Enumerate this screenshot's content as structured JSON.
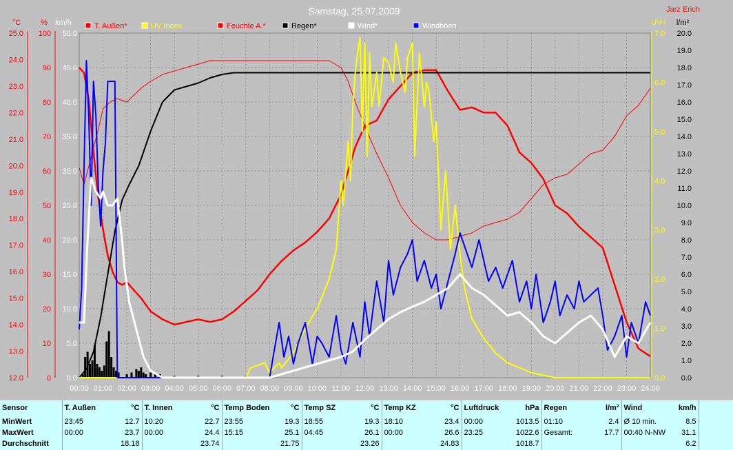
{
  "chart_data": {
    "type": "line",
    "title": "Samstag, 25.07.2009",
    "author": "Jarz Erich",
    "x_ticks": [
      "00:00",
      "01:00",
      "02:00",
      "03:00",
      "04:00",
      "05:00",
      "06:00",
      "07:00",
      "08:00",
      "09:00",
      "10:00",
      "11:00",
      "12:00",
      "13:00",
      "14:00",
      "15:00",
      "16:00",
      "17:00",
      "18:00",
      "19:00",
      "20:00",
      "21:00",
      "22:00",
      "23:00",
      "24:00"
    ],
    "axes": {
      "temp": {
        "unit": "°C",
        "color": "#ff0000",
        "range": [
          12,
          25
        ],
        "ticks": [
          "12.0",
          "13.0",
          "14.0",
          "15.0",
          "16.0",
          "17.0",
          "18.0",
          "19.0",
          "20.0",
          "21.0",
          "22.0",
          "23.0",
          "24.0",
          "25.0"
        ]
      },
      "humidity": {
        "unit": "%",
        "color": "#ff0000",
        "range": [
          0,
          100
        ],
        "ticks": [
          "0",
          "10",
          "20",
          "30",
          "40",
          "50",
          "60",
          "70",
          "80",
          "90",
          "100"
        ]
      },
      "wind": {
        "unit": "km/h",
        "color": "#ffffff",
        "range": [
          0,
          50
        ],
        "ticks": [
          "0.0",
          "5.0",
          "10.0",
          "15.0",
          "20.0",
          "25.0",
          "30.0",
          "35.0",
          "40.0",
          "45.0",
          "50.0"
        ]
      },
      "uv": {
        "unit": "UV-I",
        "color": "#ffff00",
        "range": [
          0,
          7
        ],
        "ticks": [
          "0.0",
          "1.0",
          "2.0",
          "3.0",
          "4.0",
          "5.0",
          "6.0",
          "7.0"
        ]
      },
      "rain": {
        "unit": "l/m²",
        "color": "#000000",
        "range": [
          0,
          20
        ],
        "ticks": [
          "0.0",
          "1.0",
          "2.0",
          "3.0",
          "4.0",
          "5.0",
          "6.0",
          "7.0",
          "8.0",
          "9.0",
          "10.0",
          "11.0",
          "12.0",
          "13.0",
          "14.0",
          "15.0",
          "16.0",
          "17.0",
          "18.0",
          "19.0",
          "20.0"
        ]
      }
    },
    "legend": [
      {
        "label": "T. Außen*",
        "color": "#ff0000",
        "text_color": "#ff0000"
      },
      {
        "label": "UV Index",
        "color": "#ffff00",
        "text_color": "#ffff00"
      },
      {
        "label": "Feuchte A.*",
        "color": "#ff0000",
        "text_color": "#ff0000"
      },
      {
        "label": "Regen*",
        "color": "#000000",
        "text_color": "#000000"
      },
      {
        "label": "Wind*",
        "color": "#ffffff",
        "text_color": "#ffffff"
      },
      {
        "label": "Windböen",
        "color": "#0000ff",
        "text_color": "#ffffff"
      }
    ],
    "grid": true,
    "series": [
      {
        "name": "T. Außen*",
        "color": "#ff0000",
        "axis": "temp",
        "width": 2.5,
        "x": [
          0,
          0.2,
          0.4,
          0.6,
          0.8,
          1,
          1.2,
          1.4,
          1.6,
          1.8,
          2,
          2.3,
          2.6,
          3,
          3.5,
          4,
          4.5,
          5,
          5.5,
          6,
          6.5,
          7,
          7.5,
          8,
          8.5,
          9,
          9.5,
          10,
          10.5,
          11,
          11.3,
          11.6,
          12,
          12.5,
          13,
          13.5,
          14,
          14.5,
          15,
          15.5,
          16,
          16.5,
          17,
          17.5,
          18,
          18.5,
          19,
          19.5,
          20,
          20.5,
          21,
          21.5,
          22,
          22.5,
          23,
          23.5,
          24
        ],
        "y": [
          23.7,
          23.5,
          22.5,
          20.5,
          18.8,
          17.6,
          16.6,
          16.0,
          15.6,
          15.5,
          15.6,
          15.3,
          15.0,
          14.5,
          14.2,
          14.0,
          14.1,
          14.2,
          14.1,
          14.2,
          14.5,
          14.9,
          15.3,
          15.9,
          16.4,
          16.8,
          17.1,
          17.5,
          18.0,
          18.9,
          19.8,
          20.7,
          21.5,
          21.7,
          22.5,
          23.0,
          23.5,
          23.6,
          23.6,
          22.8,
          22.1,
          22.2,
          22.0,
          22.0,
          21.5,
          20.5,
          20.1,
          19.5,
          18.5,
          18.2,
          17.7,
          17.3,
          16.9,
          15.5,
          14.1,
          13.1,
          12.8
        ]
      },
      {
        "name": "Feuchte A.*",
        "color": "#ff0000",
        "axis": "humidity",
        "width": 1,
        "x": [
          0,
          0.2,
          0.5,
          0.8,
          1,
          1.3,
          1.6,
          2,
          2.3,
          2.6,
          3,
          3.5,
          4,
          4.5,
          5,
          5.5,
          6,
          6.5,
          7,
          7.5,
          8,
          8.5,
          9,
          9.5,
          10,
          10.5,
          11,
          11.3,
          11.6,
          12,
          12.5,
          13,
          13.5,
          14,
          14.5,
          15,
          15.5,
          16,
          16.5,
          17,
          17.5,
          18,
          18.5,
          19,
          19.5,
          20,
          20.5,
          21,
          21.5,
          22,
          22.5,
          23,
          23.5,
          24
        ],
        "y": [
          61,
          56,
          64,
          72,
          78,
          80,
          81,
          80,
          82,
          84,
          86,
          88,
          89,
          90,
          91,
          92,
          92,
          92,
          92,
          92,
          92,
          92,
          92,
          92,
          92,
          92,
          90,
          86,
          80,
          73,
          65,
          58,
          50,
          45,
          42,
          40,
          40,
          41,
          42,
          44,
          45,
          46,
          48,
          52,
          56,
          58,
          59,
          62,
          65,
          66,
          70,
          76,
          79,
          84
        ]
      },
      {
        "name": "Regen*",
        "color": "#000000",
        "axis": "rain",
        "width": 2,
        "x": [
          0,
          0.3,
          0.6,
          0.9,
          1.2,
          1.5,
          1.8,
          2.1,
          2.5,
          3,
          3.5,
          4,
          4.5,
          5,
          5.5,
          6,
          6.5,
          7,
          7.5,
          8,
          10,
          12,
          14,
          16,
          18,
          20,
          22,
          24
        ],
        "y": [
          0,
          0.5,
          1.5,
          3.5,
          6.0,
          8.5,
          10.3,
          11.2,
          12.3,
          14.3,
          16.0,
          16.7,
          16.9,
          17.1,
          17.4,
          17.6,
          17.7,
          17.7,
          17.7,
          17.7,
          17.7,
          17.7,
          17.7,
          17.7,
          17.7,
          17.7,
          17.7,
          17.7
        ]
      },
      {
        "name": "UV Index",
        "color": "#ffff00",
        "axis": "uv",
        "width": 2,
        "x": [
          0,
          7.0,
          7.2,
          7.8,
          8.0,
          8.4,
          8.5,
          9.0,
          9.5,
          10.0,
          10.5,
          10.8,
          11.0,
          11.1,
          11.3,
          11.4,
          11.5,
          11.6,
          11.7,
          11.8,
          11.9,
          12.0,
          12.1,
          12.2,
          12.3,
          12.5,
          12.6,
          12.8,
          13.0,
          13.2,
          13.3,
          13.5,
          13.7,
          13.8,
          14.0,
          14.1,
          14.3,
          14.5,
          14.6,
          14.7,
          14.9,
          15.0,
          15.2,
          15.4,
          15.6,
          15.8,
          16.0,
          16.2,
          16.5,
          17.0,
          17.5,
          18.0,
          18.5,
          19.0,
          20.0,
          22.0,
          24.0
        ],
        "y": [
          0,
          0,
          0.2,
          0.3,
          0.1,
          0.3,
          0.2,
          0.5,
          1.0,
          1.4,
          2.0,
          2.6,
          4.0,
          3.5,
          4.8,
          4.0,
          5.5,
          6.2,
          6.6,
          6.9,
          5.0,
          6.8,
          4.5,
          6.6,
          5.5,
          6.2,
          5.5,
          6.5,
          6.4,
          6.0,
          6.8,
          6.2,
          5.8,
          6.5,
          6.8,
          4.5,
          6.6,
          5.5,
          6.0,
          5.8,
          4.8,
          5.2,
          3.0,
          4.2,
          2.6,
          3.5,
          2.5,
          1.8,
          1.2,
          0.8,
          0.5,
          0.3,
          0.2,
          0.1,
          0,
          0,
          0
        ]
      },
      {
        "name": "Windböen",
        "color": "#0000ff",
        "axis": "wind",
        "width": 2,
        "x": [
          0,
          0.1,
          0.2,
          0.3,
          0.4,
          0.5,
          0.6,
          0.7,
          0.8,
          0.9,
          1.0,
          1.1,
          1.2,
          1.3,
          1.4,
          1.5,
          1.6,
          1.7,
          1.8,
          1.9,
          2.0,
          3,
          8.0,
          8.2,
          8.4,
          8.6,
          8.8,
          9.0,
          9.2,
          9.5,
          9.8,
          10.0,
          10.2,
          10.5,
          10.8,
          11.0,
          11.2,
          11.5,
          11.8,
          12.0,
          12.2,
          12.5,
          12.8,
          13.0,
          13.2,
          13.5,
          13.8,
          14.0,
          14.2,
          14.5,
          14.8,
          15.0,
          15.2,
          15.5,
          15.8,
          16.0,
          16.2,
          16.5,
          16.8,
          17.0,
          17.2,
          17.5,
          17.8,
          18.0,
          18.2,
          18.5,
          18.8,
          19.0,
          19.2,
          19.5,
          19.8,
          20.0,
          20.2,
          20.5,
          20.8,
          21.0,
          21.2,
          21.5,
          21.8,
          22.0,
          22.2,
          22.5,
          22.8,
          23.0,
          23.2,
          23.5,
          23.8,
          24.0
        ],
        "y": [
          7,
          13,
          30,
          46,
          38,
          25,
          43,
          38,
          28,
          22,
          30,
          34,
          43,
          43,
          43,
          43,
          0,
          0,
          0,
          0,
          0,
          0,
          0,
          4,
          8,
          3,
          6,
          2,
          5,
          8,
          2,
          6,
          5,
          3,
          9,
          4,
          2,
          8,
          3,
          11,
          6,
          14,
          8,
          17,
          12,
          16,
          18,
          20,
          14,
          17,
          13,
          15,
          10,
          14,
          18,
          21,
          19,
          16,
          20,
          17,
          14,
          16,
          13,
          15,
          17,
          11,
          14,
          10,
          15,
          8,
          11,
          14,
          9,
          12,
          10,
          14,
          11,
          12,
          13,
          9,
          4,
          6,
          9,
          3,
          8,
          5,
          11,
          9
        ]
      },
      {
        "name": "Wind*",
        "color": "#ffffff",
        "axis": "wind",
        "width": 3,
        "x": [
          0,
          0.2,
          0.35,
          0.5,
          0.7,
          0.9,
          1.0,
          1.2,
          1.4,
          1.6,
          1.8,
          1.9,
          2.1,
          2.4,
          2.7,
          3.0,
          3.5,
          8,
          8.5,
          9.0,
          9.5,
          10,
          10.5,
          11,
          11.5,
          12,
          12.5,
          13,
          13.5,
          14,
          14.5,
          15,
          15.5,
          16,
          16.5,
          17,
          17.5,
          18,
          18.5,
          19,
          19.5,
          20,
          20.5,
          21,
          21.5,
          22,
          22.5,
          23,
          23.5,
          24
        ],
        "y": [
          8,
          8,
          20,
          29,
          27,
          26,
          27,
          25,
          25,
          26,
          20,
          16,
          11,
          7,
          3,
          1,
          0,
          0,
          0.5,
          1,
          1.5,
          2,
          2.5,
          3,
          3.8,
          5.5,
          7,
          8.5,
          9.5,
          10.3,
          11,
          12,
          13,
          15,
          13,
          12,
          10.5,
          9,
          9.5,
          8,
          6,
          5,
          6.5,
          8,
          9,
          7,
          3,
          6,
          5,
          8
        ]
      }
    ],
    "rain_bars": {
      "x": [
        0.15,
        0.25,
        0.35,
        0.45,
        0.55,
        0.65,
        0.75,
        0.85,
        0.95,
        1.05,
        1.15,
        1.25,
        1.35,
        1.45,
        1.55,
        1.65,
        2.0,
        2.2,
        2.4,
        2.5,
        2.6,
        2.7,
        2.8,
        3.0,
        3.2,
        3.4,
        4.0,
        5.0,
        6.0,
        7.0
      ],
      "y": [
        0.2,
        1.2,
        1.5,
        0.8,
        1.0,
        1.9,
        0.8,
        0.6,
        0.4,
        0.7,
        2.1,
        2.7,
        1.2,
        0.6,
        0.4,
        0.3,
        0.2,
        0.3,
        0.5,
        0.4,
        0.6,
        0.3,
        0.2,
        0.3,
        0.2,
        0.2,
        0.1,
        0.1,
        0.1,
        0.1
      ]
    }
  },
  "stats": {
    "headers": [
      {
        "name": "Sensor",
        "unit": ""
      },
      {
        "name": "T. Außen",
        "unit": "°C"
      },
      {
        "name": "T. Innen",
        "unit": "°C"
      },
      {
        "name": "Temp Boden",
        "unit": "°C"
      },
      {
        "name": "Temp SZ",
        "unit": "°C"
      },
      {
        "name": "Temp KZ",
        "unit": "°C"
      },
      {
        "name": "Luftdruck",
        "unit": "hPa"
      },
      {
        "name": "Regen",
        "unit": "l/m²"
      },
      {
        "name": "Wind",
        "unit": "km/h"
      }
    ],
    "rows": [
      {
        "label": "MinWert",
        "cells": [
          [
            "23:45",
            "12.7"
          ],
          [
            "10:20",
            "22.7"
          ],
          [
            "23:55",
            "19.3"
          ],
          [
            "18:55",
            "19.3"
          ],
          [
            "18:10",
            "23.4"
          ],
          [
            "00:00",
            "1013.5"
          ],
          [
            "01:10",
            "2.4"
          ],
          [
            "Ø 10 min.",
            "8.5"
          ]
        ]
      },
      {
        "label": "MaxWert",
        "cells": [
          [
            "00:00",
            "23.7"
          ],
          [
            "00:00",
            "24.4"
          ],
          [
            "15:15",
            "25.1"
          ],
          [
            "04:45",
            "26.1"
          ],
          [
            "00:00",
            "26.6"
          ],
          [
            "23:25",
            "1022.6"
          ],
          [
            "Gesamt:",
            "17.7"
          ],
          [
            "00:40   N-NW",
            "31.1"
          ]
        ]
      },
      {
        "label": "Durchschnitt",
        "cells": [
          [
            "",
            "18.18"
          ],
          [
            "",
            "23.74"
          ],
          [
            "",
            "21.75"
          ],
          [
            "",
            "23.26"
          ],
          [
            "",
            "24.83"
          ],
          [
            "",
            "1018.7"
          ],
          [
            "",
            ""
          ],
          [
            "",
            "6.2"
          ]
        ]
      }
    ]
  }
}
